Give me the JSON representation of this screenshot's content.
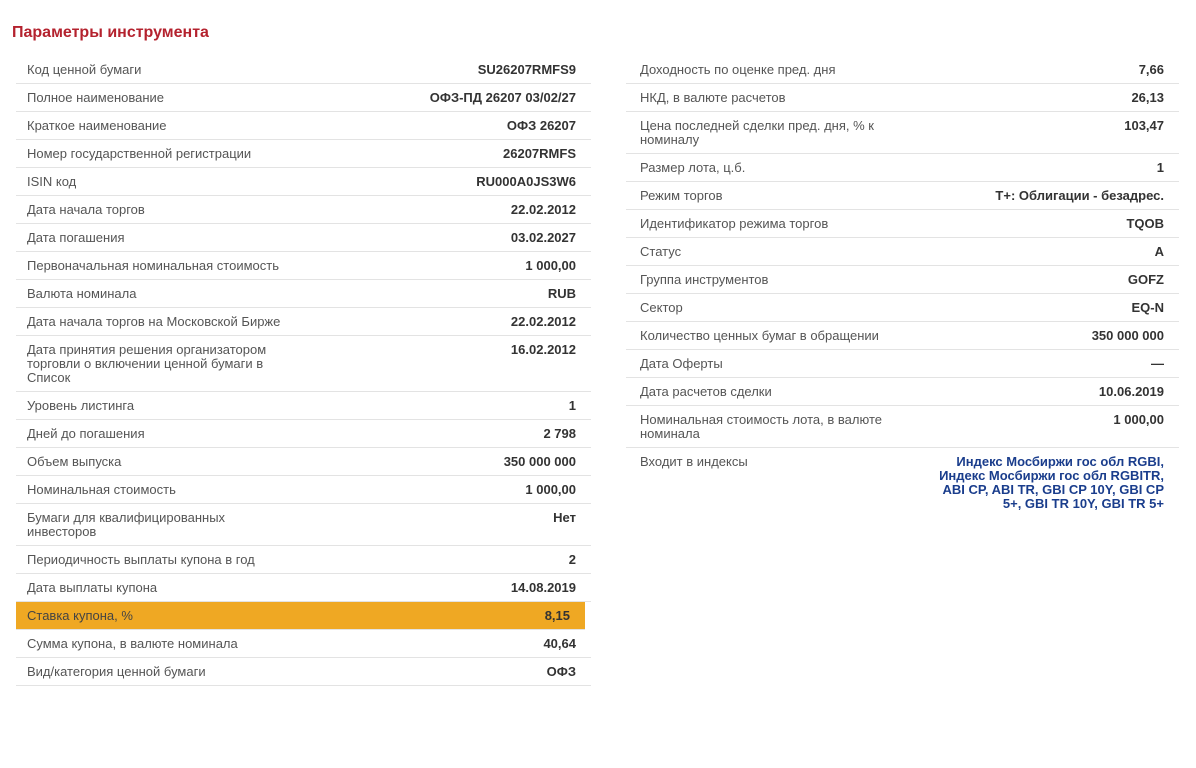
{
  "title": "Параметры инструмента",
  "left": [
    {
      "label": "Код ценной бумаги",
      "value": "SU26207RMFS9"
    },
    {
      "label": "Полное наименование",
      "value": "ОФЗ-ПД 26207 03/02/27"
    },
    {
      "label": "Краткое наименование",
      "value": "ОФЗ 26207"
    },
    {
      "label": "Номер государственной регистрации",
      "value": "26207RMFS"
    },
    {
      "label": "ISIN код",
      "value": "RU000A0JS3W6"
    },
    {
      "label": "Дата начала торгов",
      "value": "22.02.2012"
    },
    {
      "label": "Дата погашения",
      "value": "03.02.2027"
    },
    {
      "label": "Первоначальная номинальная стоимость",
      "value": "1 000,00"
    },
    {
      "label": "Валюта номинала",
      "value": "RUB"
    },
    {
      "label": "Дата начала торгов на Московской Бирже",
      "value": "22.02.2012"
    },
    {
      "label": "Дата принятия решения организатором торговли о включении ценной бумаги в Список",
      "value": "16.02.2012"
    },
    {
      "label": "Уровень листинга",
      "value": "1"
    },
    {
      "label": "Дней до погашения",
      "value": "2 798"
    },
    {
      "label": "Объем выпуска",
      "value": "350 000 000"
    },
    {
      "label": "Номинальная стоимость",
      "value": "1 000,00"
    },
    {
      "label": "Бумаги для квалифицированных инвесторов",
      "value": "Нет"
    },
    {
      "label": "Периодичность выплаты купона в год",
      "value": "2"
    },
    {
      "label": "Дата выплаты купона",
      "value": "14.08.2019"
    },
    {
      "label": "Ставка купона, %",
      "value": "8,15"
    },
    {
      "label": "Сумма купона, в валюте номинала",
      "value": "40,64"
    },
    {
      "label": "Вид/категория ценной бумаги",
      "value": "ОФЗ"
    }
  ],
  "right": [
    {
      "label": "Доходность по оценке пред. дня",
      "value": "7,66"
    },
    {
      "label": "НКД, в валюте расчетов",
      "value": "26,13"
    },
    {
      "label": "Цена последней сделки пред. дня, % к номиналу",
      "value": "103,47"
    },
    {
      "label": "Размер лота, ц.б.",
      "value": "1"
    },
    {
      "label": "Режим торгов",
      "value": "Т+: Облигации - безадрес."
    },
    {
      "label": "Идентификатор режима торгов",
      "value": "TQOB"
    },
    {
      "label": "Статус",
      "value": "А"
    },
    {
      "label": "Группа инструментов",
      "value": "GOFZ"
    },
    {
      "label": "Сектор",
      "value": "EQ-N"
    },
    {
      "label": "Количество ценных бумаг в обращении",
      "value": "350 000 000"
    },
    {
      "label": "Дата Оферты",
      "value": "—"
    },
    {
      "label": "Дата расчетов сделки",
      "value": "10.06.2019"
    },
    {
      "label": "Номинальная стоимость лота, в валюте номинала",
      "value": "1 000,00"
    },
    {
      "label": "Входит в индексы",
      "value": "Индекс Мосбиржи гос обл RGBI, Индекс Мосбиржи гос обл RGBITR, ABI CP, ABI TR, GBI CP 10Y, GBI CP 5+, GBI TR 10Y, GBI TR 5+"
    }
  ],
  "colors": {
    "title": "#b4222e",
    "highlight": "#efa823",
    "link": "#1a3d8c"
  }
}
